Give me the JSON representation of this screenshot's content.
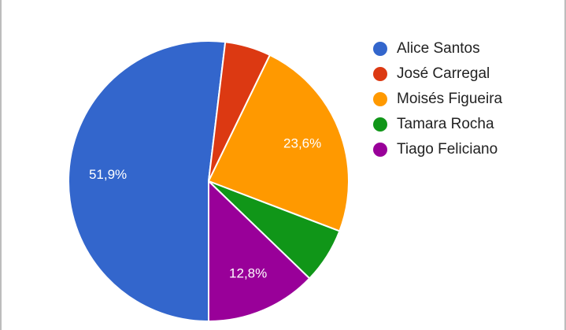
{
  "chart_data": {
    "type": "pie",
    "title": "",
    "legend_position": "right",
    "slices": [
      {
        "name": "Alice Santos",
        "value": 51.9,
        "label": "51,9%",
        "color": "#3366cc"
      },
      {
        "name": "José Carregal",
        "value": 5.3,
        "label": "",
        "color": "#dc3912"
      },
      {
        "name": "Moisés Figueira",
        "value": 23.6,
        "label": "23,6%",
        "color": "#ff9900"
      },
      {
        "name": "Tamara Rocha",
        "value": 6.4,
        "label": "",
        "color": "#109618"
      },
      {
        "name": "Tiago Feliciano",
        "value": 12.8,
        "label": "12,8%",
        "color": "#990099"
      }
    ]
  }
}
